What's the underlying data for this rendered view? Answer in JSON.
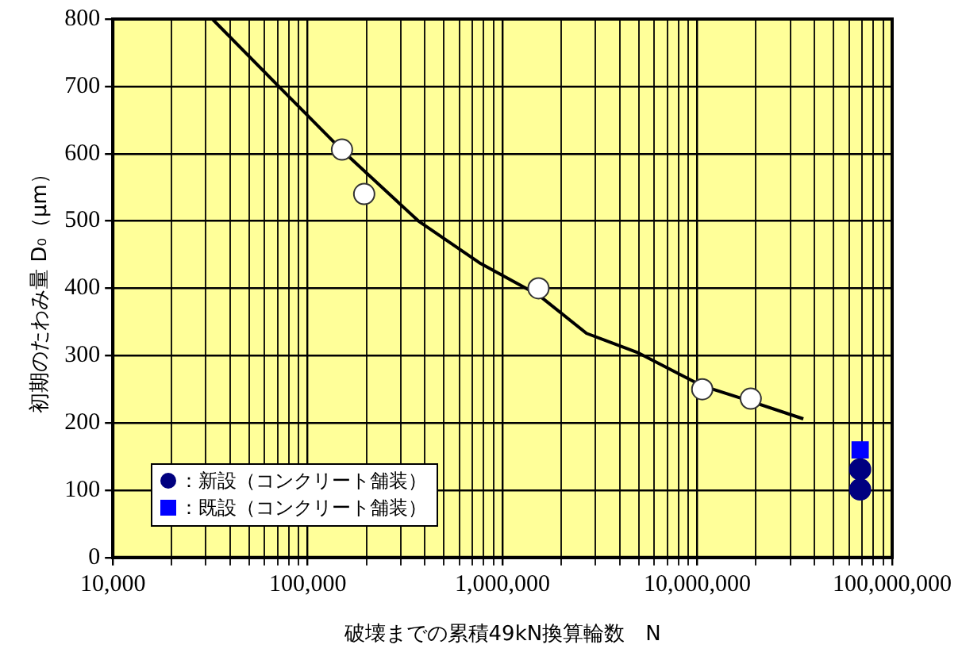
{
  "chart_data": {
    "type": "scatter",
    "xlabel": "破壊までの累積49kN換算輪数　N",
    "ylabel": "初期のたわみ量 D₀（μm）",
    "log": "x",
    "xlim": [
      10000,
      100000000
    ],
    "xticks": [
      {
        "value": 10000,
        "label": "10,000"
      },
      {
        "value": 20000,
        "label": null
      },
      {
        "value": 30000,
        "label": null
      },
      {
        "value": 40000,
        "label": null
      },
      {
        "value": 50000,
        "label": null
      },
      {
        "value": 60000,
        "label": null
      },
      {
        "value": 70000,
        "label": null
      },
      {
        "value": 80000,
        "label": null
      },
      {
        "value": 90000,
        "label": null
      },
      {
        "value": 100000,
        "label": "100,000"
      },
      {
        "value": 200000,
        "label": null
      },
      {
        "value": 300000,
        "label": null
      },
      {
        "value": 400000,
        "label": null
      },
      {
        "value": 500000,
        "label": null
      },
      {
        "value": 600000,
        "label": null
      },
      {
        "value": 700000,
        "label": null
      },
      {
        "value": 800000,
        "label": null
      },
      {
        "value": 900000,
        "label": null
      },
      {
        "value": 1000000,
        "label": "1,000,000"
      },
      {
        "value": 2000000,
        "label": null
      },
      {
        "value": 3000000,
        "label": null
      },
      {
        "value": 4000000,
        "label": null
      },
      {
        "value": 5000000,
        "label": null
      },
      {
        "value": 6000000,
        "label": null
      },
      {
        "value": 7000000,
        "label": null
      },
      {
        "value": 8000000,
        "label": null
      },
      {
        "value": 9000000,
        "label": null
      },
      {
        "value": 10000000,
        "label": "10,000,000"
      },
      {
        "value": 20000000,
        "label": null
      },
      {
        "value": 30000000,
        "label": null
      },
      {
        "value": 40000000,
        "label": null
      },
      {
        "value": 50000000,
        "label": null
      },
      {
        "value": 60000000,
        "label": null
      },
      {
        "value": 70000000,
        "label": null
      },
      {
        "value": 80000000,
        "label": null
      },
      {
        "value": 90000000,
        "label": null
      },
      {
        "value": 100000000,
        "label": "100,000,000"
      }
    ],
    "ylim": [
      0,
      800
    ],
    "yticks": [
      0,
      100,
      200,
      300,
      400,
      500,
      600,
      700,
      800
    ],
    "grid": true,
    "legend": "bottom left",
    "series": [
      {
        "type": "line",
        "color": "#000000",
        "marker": "none",
        "x": [
          32400,
          71000,
          150000,
          370000,
          760000,
          1530000,
          2700000,
          4900000,
          10600000,
          18800000,
          35000000
        ],
        "values": [
          800,
          700,
          605,
          500,
          438,
          390,
          333,
          305,
          255,
          232,
          206
        ]
      },
      {
        "color": "#ffffff",
        "marker": "circle",
        "x": [
          150000,
          195000,
          1530000,
          10600000,
          18800000
        ],
        "values": [
          606,
          540,
          400,
          250,
          236
        ]
      },
      {
        "name": "：新設（コンクリート舗装）",
        "color": "#000080",
        "marker": "circle",
        "x": [
          68500000,
          68500000
        ],
        "values": [
          131,
          101
        ]
      },
      {
        "name": "：既設（コンクリート舗装）",
        "color": "#0000ff",
        "marker": "square",
        "x": [
          68500000
        ],
        "values": [
          160
        ]
      }
    ]
  }
}
